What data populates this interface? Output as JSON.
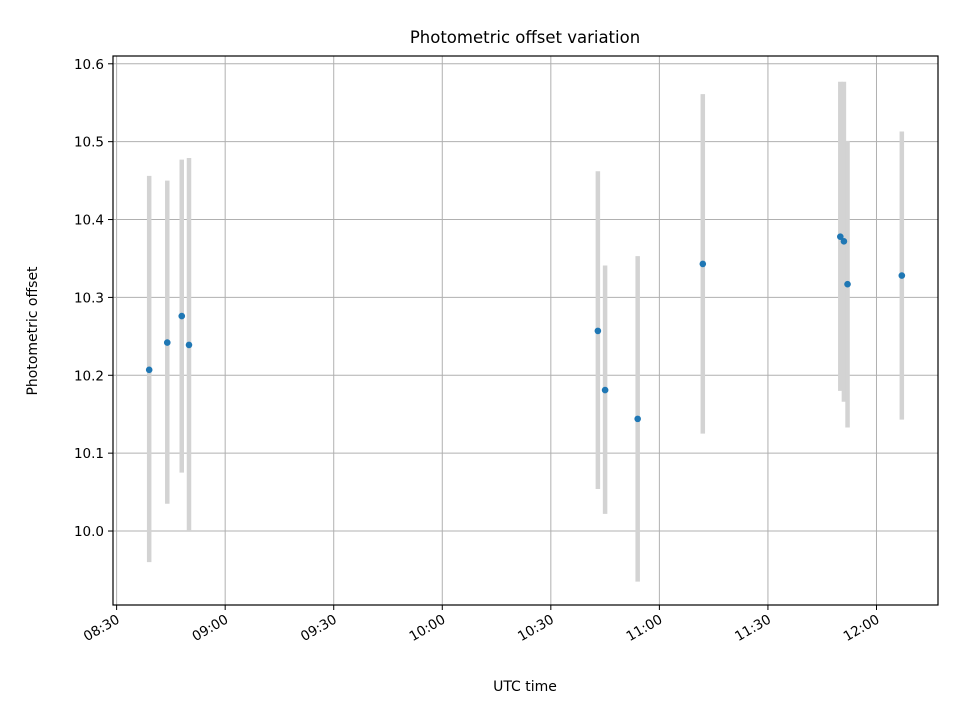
{
  "chart_data": {
    "type": "scatter",
    "title": "Photometric offset variation",
    "xlabel": "UTC time",
    "ylabel": "Photometric offset",
    "x_tick_labels": [
      "08:30",
      "09:00",
      "09:30",
      "10:00",
      "10:30",
      "11:00",
      "11:30",
      "12:00"
    ],
    "y_tick_labels": [
      "10.0",
      "10.1",
      "10.2",
      "10.3",
      "10.4",
      "10.5",
      "10.6"
    ],
    "ylim": [
      9.905,
      10.61
    ],
    "xlim": [
      "08:29",
      "12:17"
    ],
    "grid": true,
    "marker_color": "#1f77b4",
    "errorbar_color": "#d3d3d3",
    "points": [
      {
        "x": "08:39",
        "y": 10.207,
        "y_low": 9.96,
        "y_high": 10.456
      },
      {
        "x": "08:44",
        "y": 10.242,
        "y_low": 10.035,
        "y_high": 10.45
      },
      {
        "x": "08:48",
        "y": 10.276,
        "y_low": 10.075,
        "y_high": 10.477
      },
      {
        "x": "08:50",
        "y": 10.239,
        "y_low": 10.0,
        "y_high": 10.479
      },
      {
        "x": "10:43",
        "y": 10.257,
        "y_low": 10.054,
        "y_high": 10.462
      },
      {
        "x": "10:45",
        "y": 10.181,
        "y_low": 10.022,
        "y_high": 10.341
      },
      {
        "x": "10:54",
        "y": 10.144,
        "y_low": 9.935,
        "y_high": 10.353
      },
      {
        "x": "11:12",
        "y": 10.343,
        "y_low": 10.125,
        "y_high": 10.561
      },
      {
        "x": "11:50",
        "y": 10.378,
        "y_low": 10.18,
        "y_high": 10.577
      },
      {
        "x": "11:51",
        "y": 10.372,
        "y_low": 10.166,
        "y_high": 10.577
      },
      {
        "x": "11:52",
        "y": 10.317,
        "y_low": 10.133,
        "y_high": 10.501
      },
      {
        "x": "12:07",
        "y": 10.328,
        "y_low": 10.143,
        "y_high": 10.513
      }
    ]
  }
}
